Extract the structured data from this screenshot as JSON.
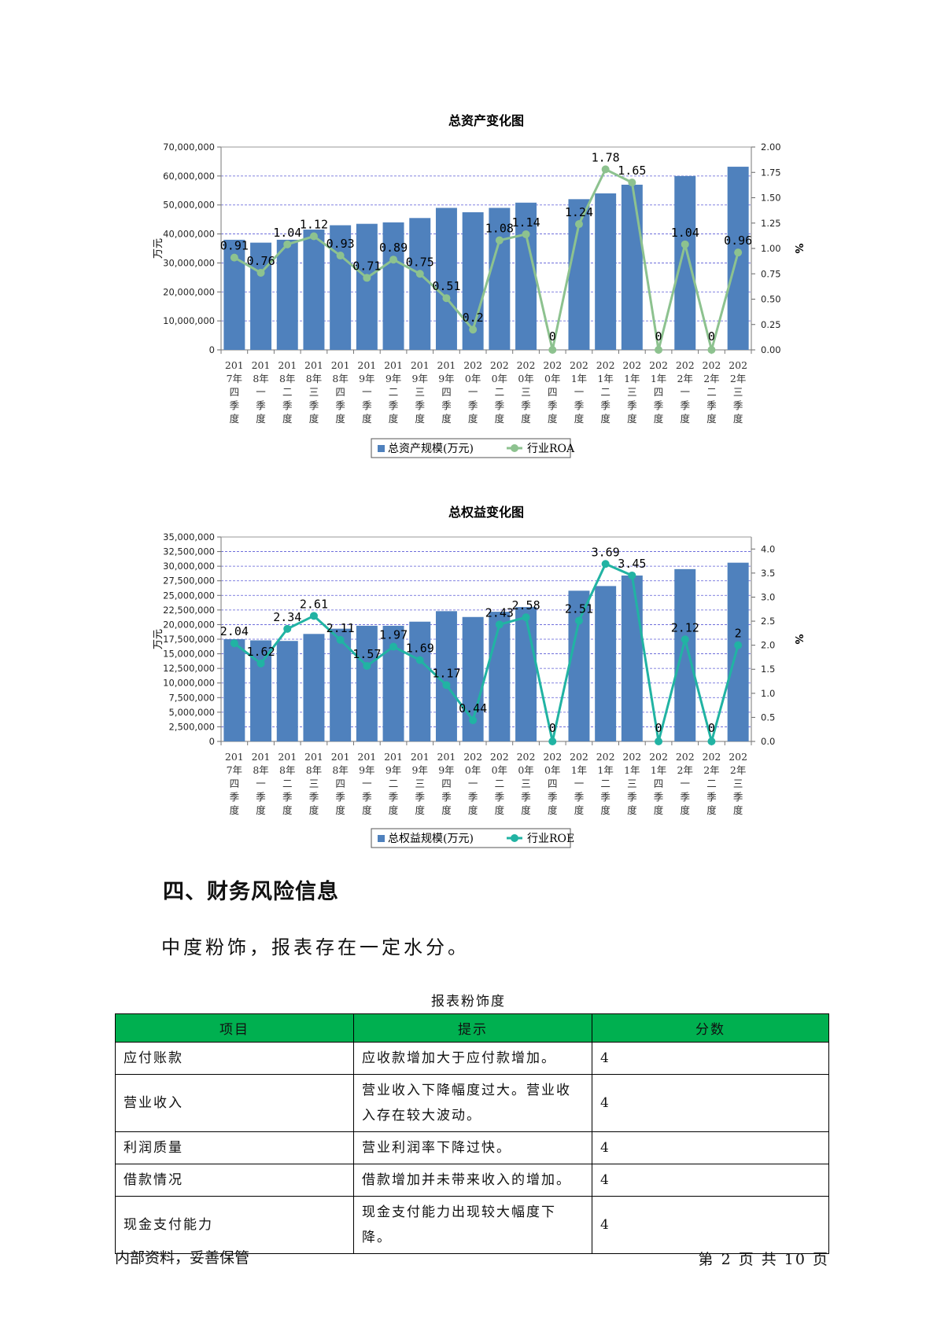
{
  "chart_data": [
    {
      "type": "bar",
      "title": "总资产变化图",
      "ylabel": "万元",
      "y2label": "%",
      "ylim": [
        0,
        70000000
      ],
      "yticks": [
        "0",
        "10,000,000",
        "20,000,000",
        "30,000,000",
        "40,000,000",
        "50,000,000",
        "60,000,000",
        "70,000,000"
      ],
      "y2lim": [
        0,
        2.0
      ],
      "y2ticks": [
        "0.00",
        "0.25",
        "0.50",
        "0.75",
        "1.00",
        "1.25",
        "1.50",
        "1.75",
        "2.00"
      ],
      "categories": [
        [
          "201",
          "7年",
          "四",
          "季",
          "度"
        ],
        [
          "201",
          "8年",
          "一",
          "季",
          "度"
        ],
        [
          "201",
          "8年",
          "二",
          "季",
          "度"
        ],
        [
          "201",
          "8年",
          "三",
          "季",
          "度"
        ],
        [
          "201",
          "8年",
          "四",
          "季",
          "度"
        ],
        [
          "201",
          "9年",
          "一",
          "季",
          "度"
        ],
        [
          "201",
          "9年",
          "二",
          "季",
          "度"
        ],
        [
          "201",
          "9年",
          "三",
          "季",
          "度"
        ],
        [
          "201",
          "9年",
          "四",
          "季",
          "度"
        ],
        [
          "202",
          "0年",
          "一",
          "季",
          "度"
        ],
        [
          "202",
          "0年",
          "二",
          "季",
          "度"
        ],
        [
          "202",
          "0年",
          "三",
          "季",
          "度"
        ],
        [
          "202",
          "0年",
          "四",
          "季",
          "度"
        ],
        [
          "202",
          "1年",
          "一",
          "季",
          "度"
        ],
        [
          "202",
          "1年",
          "二",
          "季",
          "度"
        ],
        [
          "202",
          "1年",
          "三",
          "季",
          "度"
        ],
        [
          "202",
          "1年",
          "四",
          "季",
          "度"
        ],
        [
          "202",
          "2年",
          "一",
          "季",
          "度"
        ],
        [
          "202",
          "2年",
          "二",
          "季",
          "度"
        ],
        [
          "202",
          "2年",
          "三",
          "季",
          "度"
        ]
      ],
      "series": [
        {
          "name": "总资产规模(万元)",
          "kind": "bar",
          "color": "#4f81bd",
          "values": [
            38000000,
            37000000,
            38000000,
            41500000,
            43000000,
            43500000,
            44000000,
            45500000,
            49000000,
            47500000,
            49000000,
            50800000,
            0,
            52000000,
            54000000,
            57000000,
            0,
            60000000,
            0,
            63200000
          ]
        },
        {
          "name": "行业ROA",
          "kind": "line",
          "color": "#8dc28f",
          "values": [
            0.91,
            0.76,
            1.04,
            1.12,
            0.93,
            0.71,
            0.89,
            0.75,
            0.51,
            0.2,
            1.08,
            1.14,
            0,
            1.24,
            1.78,
            1.65,
            0,
            1.04,
            0,
            0.96
          ],
          "labels": [
            "0.91",
            "0.76",
            "1.04",
            "1.12",
            "0.93",
            "0.71",
            "0.89",
            "0.75",
            "0.51",
            "0.2",
            "1.08",
            "1.14",
            "0",
            "1.24",
            "1.78",
            "1.65",
            "0",
            "1.04",
            "0",
            "0.96"
          ]
        }
      ],
      "legend": "bottom"
    },
    {
      "type": "bar",
      "title": "总权益变化图",
      "ylabel": "万元",
      "y2label": "%",
      "ylim": [
        0,
        35000000
      ],
      "yticks": [
        "0",
        "2,500,000",
        "5,000,000",
        "7,500,000",
        "10,000,000",
        "12,500,000",
        "15,000,000",
        "17,500,000",
        "20,000,000",
        "22,500,000",
        "25,000,000",
        "27,500,000",
        "30,000,000",
        "32,500,000",
        "35,000,000"
      ],
      "y2lim": [
        0,
        4.25
      ],
      "y2ticks": [
        "0.0",
        "0.5",
        "1.0",
        "1.5",
        "2.0",
        "2.5",
        "3.0",
        "3.5",
        "4.0"
      ],
      "categories": [
        [
          "201",
          "7年",
          "四",
          "季",
          "度"
        ],
        [
          "201",
          "8年",
          "一",
          "季",
          "度"
        ],
        [
          "201",
          "8年",
          "二",
          "季",
          "度"
        ],
        [
          "201",
          "8年",
          "三",
          "季",
          "度"
        ],
        [
          "201",
          "8年",
          "四",
          "季",
          "度"
        ],
        [
          "201",
          "9年",
          "一",
          "季",
          "度"
        ],
        [
          "201",
          "9年",
          "二",
          "季",
          "度"
        ],
        [
          "201",
          "9年",
          "三",
          "季",
          "度"
        ],
        [
          "201",
          "9年",
          "四",
          "季",
          "度"
        ],
        [
          "202",
          "0年",
          "一",
          "季",
          "度"
        ],
        [
          "202",
          "0年",
          "二",
          "季",
          "度"
        ],
        [
          "202",
          "0年",
          "三",
          "季",
          "度"
        ],
        [
          "202",
          "0年",
          "四",
          "季",
          "度"
        ],
        [
          "202",
          "1年",
          "一",
          "季",
          "度"
        ],
        [
          "202",
          "1年",
          "二",
          "季",
          "度"
        ],
        [
          "202",
          "1年",
          "三",
          "季",
          "度"
        ],
        [
          "202",
          "1年",
          "四",
          "季",
          "度"
        ],
        [
          "202",
          "2年",
          "一",
          "季",
          "度"
        ],
        [
          "202",
          "2年",
          "二",
          "季",
          "度"
        ],
        [
          "202",
          "2年",
          "三",
          "季",
          "度"
        ]
      ],
      "series": [
        {
          "name": "总权益规模(万元)",
          "kind": "bar",
          "color": "#4f81bd",
          "values": [
            17500000,
            17300000,
            17200000,
            18400000,
            19300000,
            19800000,
            19800000,
            20500000,
            22300000,
            21300000,
            22200000,
            23000000,
            0,
            25800000,
            26600000,
            28400000,
            0,
            29500000,
            0,
            30600000
          ]
        },
        {
          "name": "行业ROE",
          "kind": "line",
          "color": "#21b3a3",
          "values": [
            2.04,
            1.62,
            2.34,
            2.61,
            2.11,
            1.57,
            1.97,
            1.69,
            1.17,
            0.44,
            2.43,
            2.58,
            0,
            2.51,
            3.69,
            3.45,
            0,
            2.12,
            0,
            2
          ],
          "labels": [
            "2.04",
            "1.62",
            "2.34",
            "2.61",
            "2.11",
            "1.57",
            "1.97",
            "1.69",
            "1.17",
            "0.44",
            "2.43",
            "2.58",
            "0",
            "2.51",
            "3.69",
            "3.45",
            "0",
            "2.12",
            "0",
            "2"
          ]
        }
      ],
      "legend": "bottom"
    }
  ],
  "section": {
    "heading": "四、财务风险信息",
    "summary": "中度粉饰，报表存在一定水分。"
  },
  "table": {
    "caption": "报表粉饰度",
    "headers": [
      "项目",
      "提示",
      "分数"
    ],
    "rows": [
      {
        "item": "应付账款",
        "hint": "应收款增加大于应付款增加。",
        "score": "4"
      },
      {
        "item": "营业收入",
        "hint": "营业收入下降幅度过大。营业收入存在较大波动。",
        "score": "4"
      },
      {
        "item": "利润质量",
        "hint": "营业利润率下降过快。",
        "score": "4"
      },
      {
        "item": "借款情况",
        "hint": "借款增加并未带来收入的增加。",
        "score": "4"
      },
      {
        "item": "现金支付能力",
        "hint": "现金支付能力出现较大幅度下降。",
        "score": "4"
      }
    ]
  },
  "footer": {
    "left": "内部资料，妥善保管",
    "right": "第 2 页  共 10 页"
  }
}
